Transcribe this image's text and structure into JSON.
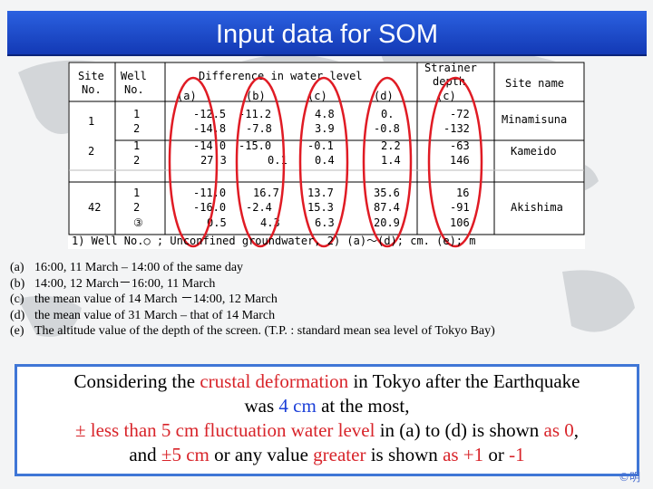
{
  "title": "Input data for SOM",
  "table": {
    "headers": {
      "site_no": [
        "Site",
        "No."
      ],
      "well_no": [
        "Well",
        "No."
      ],
      "difference": "Difference in water level",
      "cols": [
        "(a)",
        "(b)",
        "(c)",
        "(d)"
      ],
      "strainer": [
        "Strainer",
        "depth"
      ],
      "strainer_sub": "(c)",
      "site_name": "Site name"
    },
    "rows": [
      {
        "site": "1",
        "well": "1",
        "a": "-12.5",
        "b": "-11.2",
        "c": "4.8",
        "d": "0.",
        "depth": "-72",
        "name": "Minamisuna"
      },
      {
        "site": "",
        "well": "2",
        "a": "-14.8",
        "b": "-7.8",
        "c": "3.9",
        "d": "-0.8",
        "depth": "-132",
        "name": ""
      },
      {
        "site": "2",
        "well": "1",
        "a": "-14.0",
        "b": "-15.0",
        "c": "-0.1",
        "d": "2.2",
        "depth": "-63",
        "name": "Kameido"
      },
      {
        "site": "",
        "well": "2",
        "a": "27.3",
        "b": "0.1",
        "c": "0.4",
        "d": "1.4",
        "depth": "146",
        "name": ""
      },
      {
        "site": "",
        "well": "1",
        "a": "-11.0",
        "b": "16.7",
        "c": "13.7",
        "d": "35.6",
        "depth": "16",
        "name": ""
      },
      {
        "site": "42",
        "well": "2",
        "a": "-16.0",
        "b": "-2.4",
        "c": "15.3",
        "d": "87.4",
        "depth": "-91",
        "name": "Akishima"
      },
      {
        "site": "",
        "well": "③",
        "a": "0.5",
        "b": "4.3",
        "c": "6.3",
        "d": "20.9",
        "depth": "106",
        "name": ""
      }
    ],
    "footnote": "1)  Well No.○ ;  Unconfined groundwater,   2)  (a)～(d);  cm.     (e); m"
  },
  "notes": [
    {
      "key": "(a)",
      "text": "16:00, 11 March – 14:00 of the same day"
    },
    {
      "key": "(b)",
      "text": "14:00, 12 March－16:00, 11 March"
    },
    {
      "key": "(c)",
      "text": "the mean value of 14 March －14:00, 12   March"
    },
    {
      "key": "(d)",
      "text": "the mean value of 31 March – that of 14 March"
    },
    {
      "key": "(e)",
      "text": "The altitude value of the depth of the screen.  (T.P. : standard mean sea level of Tokyo Bay)"
    }
  ],
  "conclusion": {
    "l1a": "Considering the ",
    "l1b": "crustal deformation",
    "l1c": " in Tokyo after the Earthquake",
    "l2a": "was ",
    "l2b": "4 cm",
    "l2c": " at the most,",
    "l3a": "± less than 5 cm fluctuation water level",
    "l3b": " in (a) to (d) is shown ",
    "l3c": "as 0",
    "l3d": ",",
    "l4a": "and ",
    "l4b": "±5 cm",
    "l4c": " or any value ",
    "l4d": "greater",
    "l4e": " is shown ",
    "l4f": "as +1",
    "l4g": " or ",
    "l4h": "-1"
  },
  "copyright": "©明"
}
